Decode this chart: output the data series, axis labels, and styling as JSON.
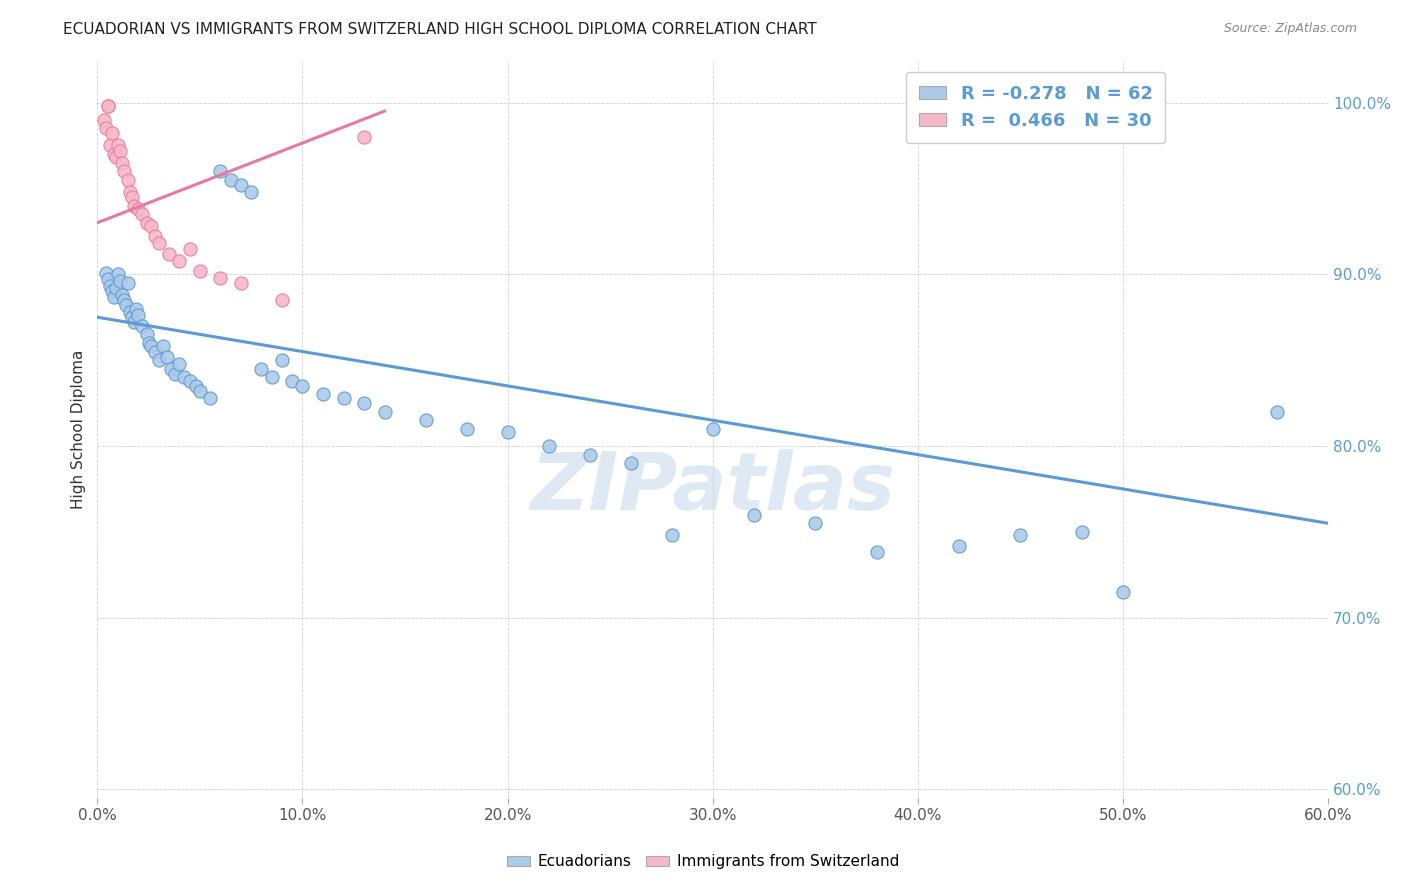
{
  "title": "ECUADORIAN VS IMMIGRANTS FROM SWITZERLAND HIGH SCHOOL DIPLOMA CORRELATION CHART",
  "source": "Source: ZipAtlas.com",
  "ylabel": "High School Diploma",
  "legend_label1": "Ecuadorians",
  "legend_label2": "Immigrants from Switzerland",
  "r1": -0.278,
  "n1": 62,
  "r2": 0.466,
  "n2": 30,
  "color_blue": "#adc9e8",
  "color_pink": "#f5b8c8",
  "line_blue": "#5b9bd5",
  "line_pink": "#e879a0",
  "watermark": "ZIPatlas",
  "xmin": 0.0,
  "xmax": 0.6,
  "ymin": 0.595,
  "ymax": 1.025,
  "blue_scatter_x": [
    0.004,
    0.005,
    0.006,
    0.007,
    0.008,
    0.009,
    0.01,
    0.011,
    0.012,
    0.013,
    0.014,
    0.015,
    0.016,
    0.017,
    0.018,
    0.019,
    0.02,
    0.022,
    0.024,
    0.025,
    0.026,
    0.028,
    0.03,
    0.032,
    0.034,
    0.036,
    0.038,
    0.04,
    0.042,
    0.045,
    0.048,
    0.05,
    0.055,
    0.06,
    0.065,
    0.07,
    0.075,
    0.08,
    0.085,
    0.09,
    0.095,
    0.1,
    0.11,
    0.12,
    0.13,
    0.14,
    0.16,
    0.18,
    0.2,
    0.22,
    0.24,
    0.26,
    0.28,
    0.3,
    0.32,
    0.35,
    0.38,
    0.42,
    0.45,
    0.48,
    0.5,
    0.575
  ],
  "blue_scatter_y": [
    0.901,
    0.897,
    0.893,
    0.89,
    0.887,
    0.892,
    0.9,
    0.896,
    0.888,
    0.885,
    0.882,
    0.895,
    0.878,
    0.875,
    0.872,
    0.88,
    0.876,
    0.87,
    0.865,
    0.86,
    0.858,
    0.855,
    0.85,
    0.858,
    0.852,
    0.845,
    0.842,
    0.848,
    0.84,
    0.838,
    0.835,
    0.832,
    0.828,
    0.96,
    0.955,
    0.952,
    0.948,
    0.845,
    0.84,
    0.85,
    0.838,
    0.835,
    0.83,
    0.828,
    0.825,
    0.82,
    0.815,
    0.81,
    0.808,
    0.8,
    0.795,
    0.79,
    0.748,
    0.81,
    0.76,
    0.755,
    0.738,
    0.742,
    0.748,
    0.75,
    0.715,
    0.82
  ],
  "pink_scatter_x": [
    0.003,
    0.004,
    0.005,
    0.005,
    0.006,
    0.007,
    0.008,
    0.009,
    0.01,
    0.011,
    0.012,
    0.013,
    0.015,
    0.016,
    0.017,
    0.018,
    0.02,
    0.022,
    0.024,
    0.026,
    0.028,
    0.03,
    0.035,
    0.04,
    0.045,
    0.05,
    0.06,
    0.07,
    0.09,
    0.13
  ],
  "pink_scatter_y": [
    0.99,
    0.985,
    0.998,
    0.998,
    0.975,
    0.982,
    0.97,
    0.968,
    0.975,
    0.972,
    0.965,
    0.96,
    0.955,
    0.948,
    0.945,
    0.94,
    0.938,
    0.935,
    0.93,
    0.928,
    0.922,
    0.918,
    0.912,
    0.908,
    0.915,
    0.902,
    0.898,
    0.895,
    0.885,
    0.98
  ],
  "ytick_labels": [
    "60.0%",
    "70.0%",
    "80.0%",
    "90.0%",
    "100.0%"
  ],
  "ytick_values": [
    0.6,
    0.7,
    0.8,
    0.9,
    1.0
  ],
  "xtick_labels": [
    "0.0%",
    "10.0%",
    "20.0%",
    "30.0%",
    "40.0%",
    "50.0%",
    "60.0%"
  ],
  "xtick_values": [
    0.0,
    0.1,
    0.2,
    0.3,
    0.4,
    0.5,
    0.6
  ],
  "blue_trendline_x": [
    0.0,
    0.6
  ],
  "blue_trendline_y": [
    0.875,
    0.755
  ],
  "pink_trendline_x": [
    0.0,
    0.14
  ],
  "pink_trendline_y": [
    0.93,
    0.995
  ]
}
